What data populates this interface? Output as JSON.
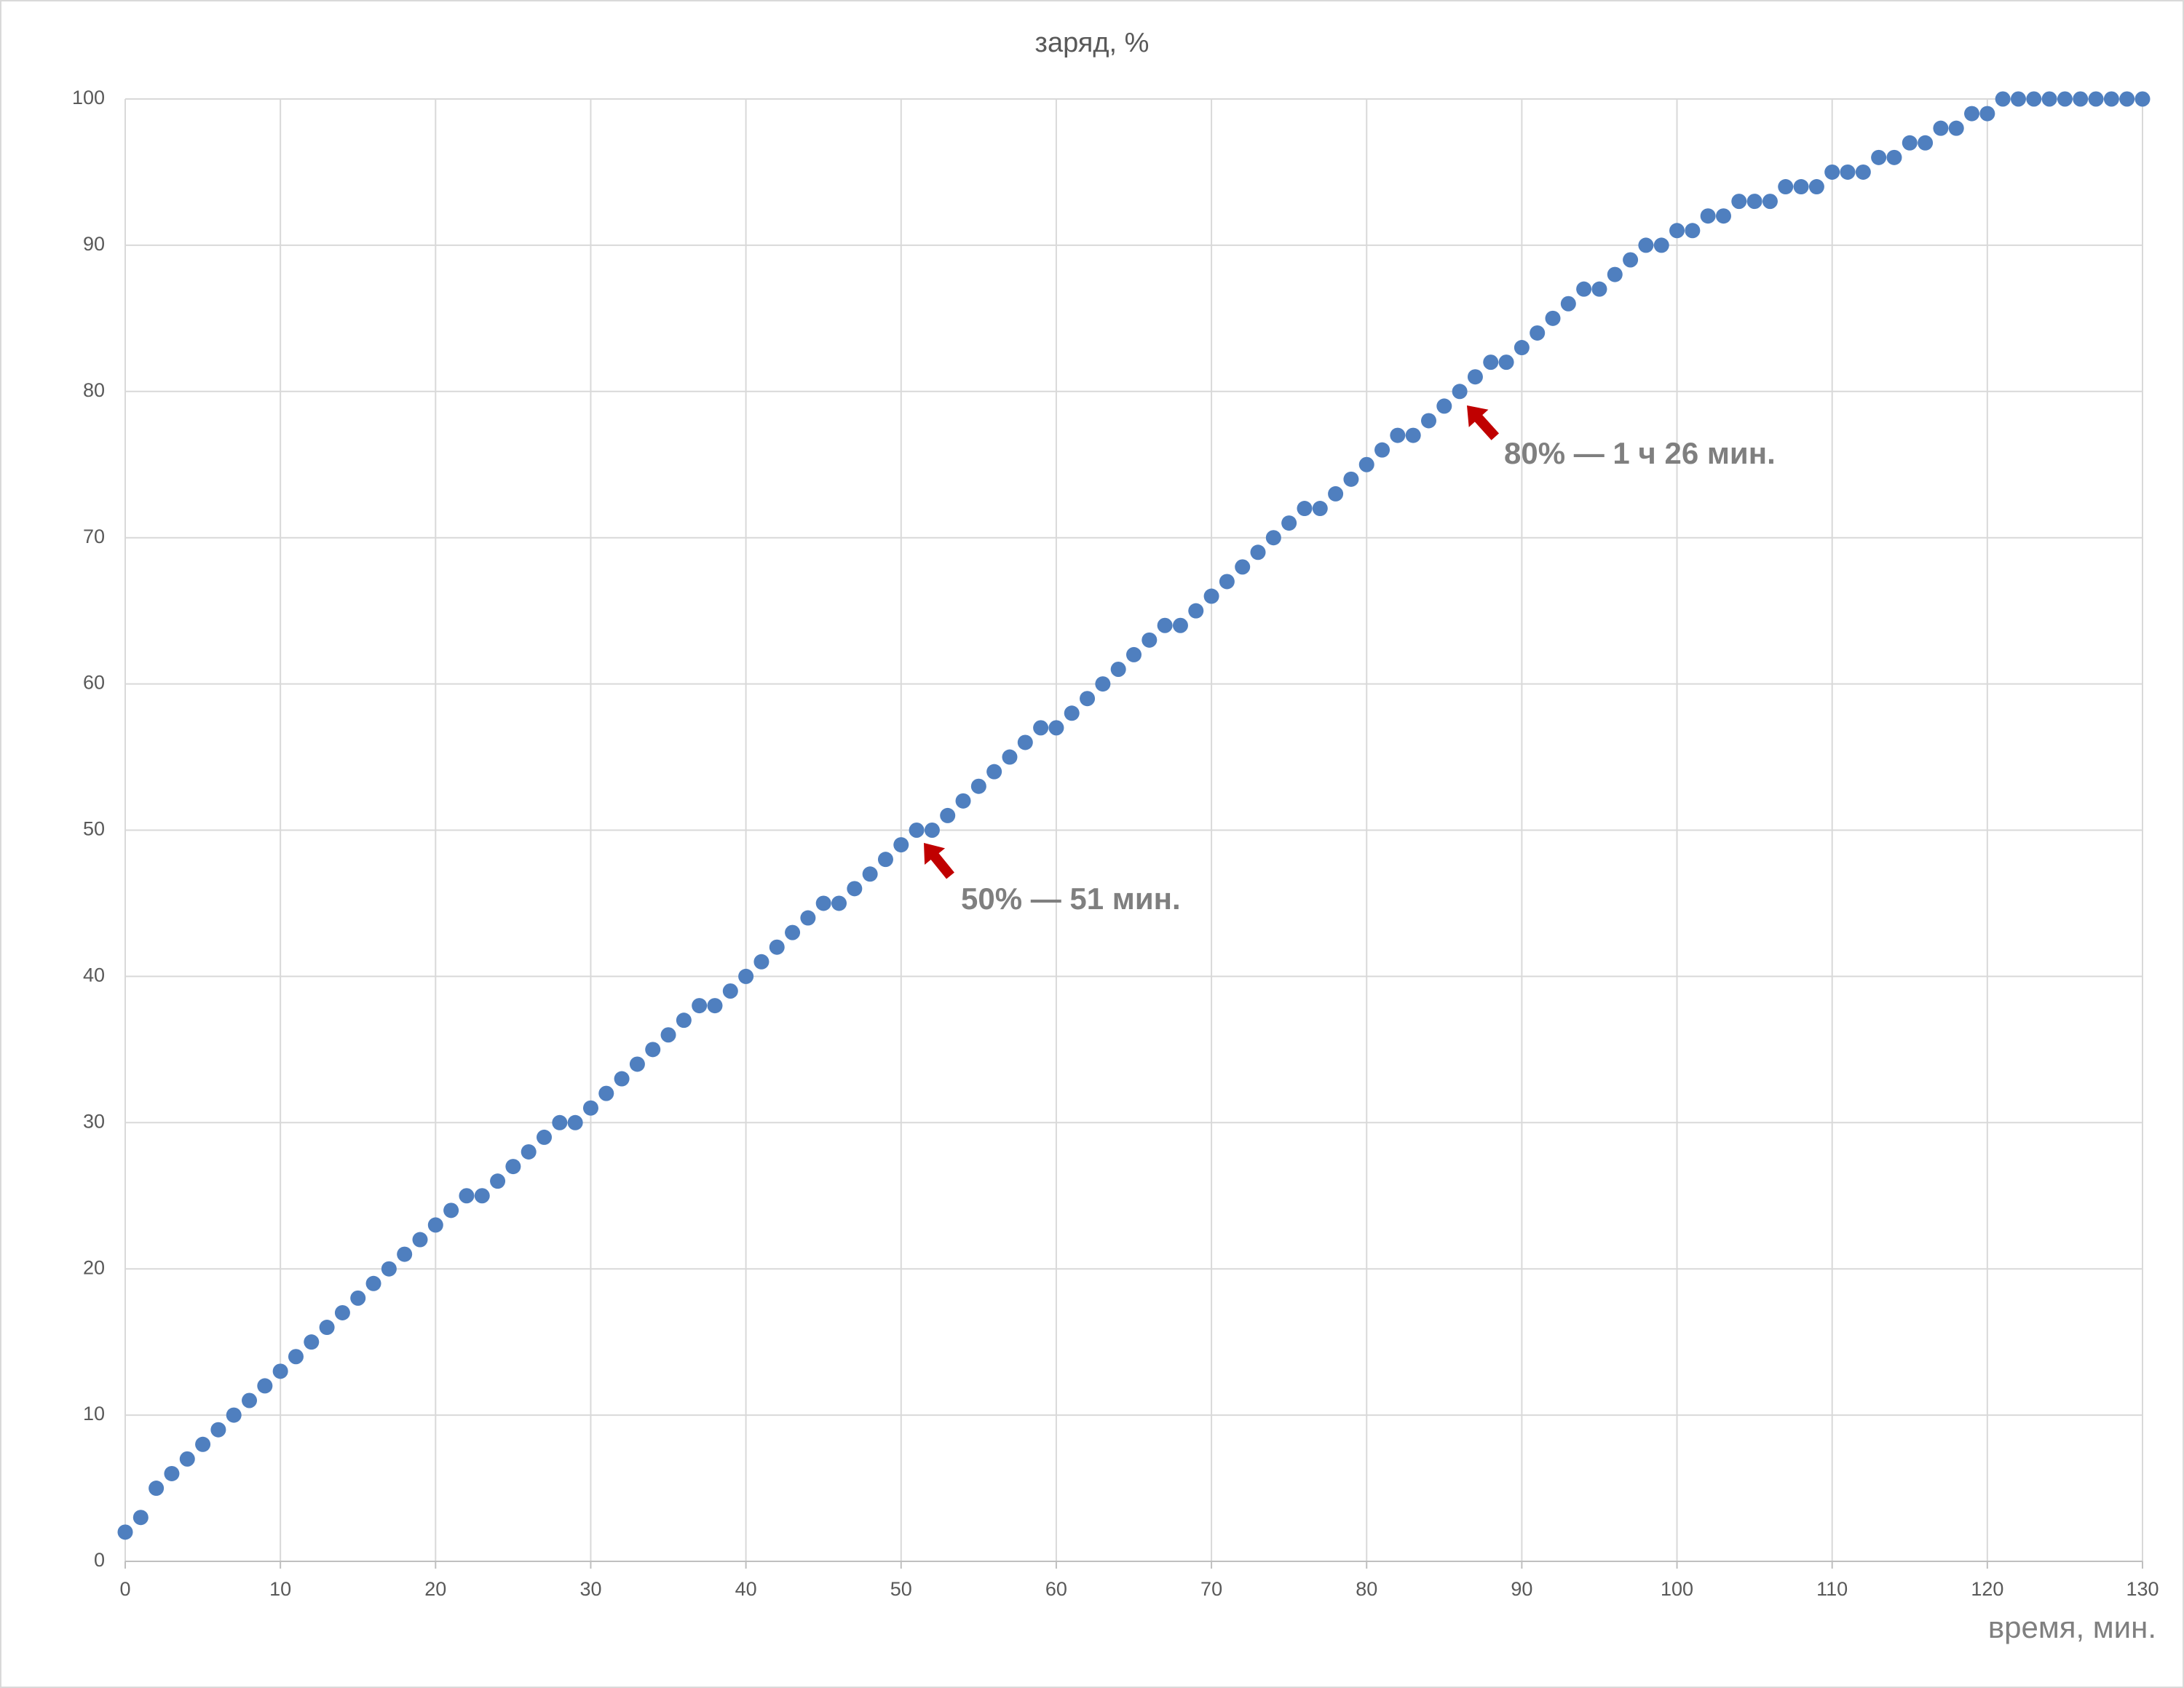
{
  "chart_data": {
    "type": "scatter",
    "title": "заряд, %",
    "x_label": "время, мин.",
    "x": [
      0,
      1,
      2,
      3,
      4,
      5,
      6,
      7,
      8,
      9,
      10,
      11,
      12,
      13,
      14,
      15,
      16,
      17,
      18,
      19,
      20,
      21,
      22,
      23,
      24,
      25,
      26,
      27,
      28,
      29,
      30,
      31,
      32,
      33,
      34,
      35,
      36,
      37,
      38,
      39,
      40,
      41,
      42,
      43,
      44,
      45,
      46,
      47,
      48,
      49,
      50,
      51,
      52,
      53,
      54,
      55,
      56,
      57,
      58,
      59,
      60,
      61,
      62,
      63,
      64,
      65,
      66,
      67,
      68,
      69,
      70,
      71,
      72,
      73,
      74,
      75,
      76,
      77,
      78,
      79,
      80,
      81,
      82,
      83,
      84,
      85,
      86,
      87,
      88,
      89,
      90,
      91,
      92,
      93,
      94,
      95,
      96,
      97,
      98,
      99,
      100,
      101,
      102,
      103,
      104,
      105,
      106,
      107,
      108,
      109,
      110,
      111,
      112,
      113,
      114,
      115,
      116,
      117,
      118,
      119,
      120,
      121,
      122,
      123,
      124,
      125,
      126,
      127,
      128,
      129,
      130
    ],
    "values": [
      2,
      3,
      5,
      6,
      7,
      8,
      9,
      10,
      11,
      12,
      13,
      14,
      15,
      16,
      17,
      18,
      19,
      20,
      21,
      22,
      23,
      24,
      25,
      25,
      26,
      27,
      28,
      29,
      30,
      30,
      31,
      32,
      33,
      34,
      35,
      36,
      37,
      38,
      38,
      39,
      40,
      41,
      42,
      43,
      44,
      45,
      45,
      46,
      47,
      48,
      49,
      50,
      50,
      51,
      52,
      53,
      54,
      55,
      56,
      57,
      57,
      58,
      59,
      60,
      61,
      62,
      63,
      64,
      64,
      65,
      66,
      67,
      68,
      69,
      70,
      71,
      72,
      72,
      73,
      74,
      75,
      76,
      77,
      77,
      78,
      79,
      80,
      81,
      82,
      82,
      83,
      84,
      85,
      86,
      87,
      87,
      88,
      89,
      90,
      90,
      91,
      91,
      92,
      92,
      93,
      93,
      93,
      94,
      94,
      94,
      95,
      95,
      95,
      96,
      96,
      97,
      97,
      98,
      98,
      99,
      99,
      100,
      100,
      100,
      100,
      100,
      100,
      100,
      100,
      100,
      100
    ],
    "color": "#4f7fbf",
    "xlim": [
      0,
      130
    ],
    "xticks": [
      0,
      10,
      20,
      30,
      40,
      50,
      60,
      70,
      80,
      90,
      100,
      110,
      120,
      130
    ],
    "ylim": [
      0,
      100
    ],
    "yticks": [
      0,
      10,
      20,
      30,
      40,
      50,
      60,
      70,
      80,
      90,
      100
    ],
    "grid": true,
    "annotations": [
      "50% — 51 мин.",
      "80% — 1 ч 26 мин."
    ]
  }
}
